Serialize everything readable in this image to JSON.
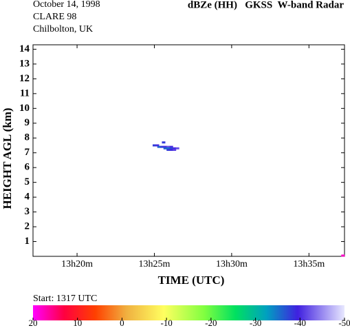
{
  "chart_data": {
    "type": "radar-image",
    "date": "October 14, 1998",
    "campaign": "CLARE 98",
    "site": "Chilbolton, UK",
    "title": "dBZe (HH)   GKSS  W-band Radar",
    "x_label": "TIME (UTC)",
    "y_label": "HEIGHT AGL (km)",
    "start": "Start: 1317 UTC",
    "xlim": [
      17.15,
      37.3
    ],
    "xticks": [
      {
        "value": 20,
        "label": "13h20m"
      },
      {
        "value": 25,
        "label": "13h25m"
      },
      {
        "value": 30,
        "label": "13h30m"
      },
      {
        "value": 35,
        "label": "13h35m"
      }
    ],
    "ylim": [
      0,
      14.3
    ],
    "yticks": [
      1,
      2,
      3,
      4,
      5,
      6,
      7,
      8,
      9,
      10,
      11,
      12,
      13,
      14
    ],
    "colorbar": {
      "lim": [
        20,
        -50
      ],
      "ticks": [
        20,
        10,
        0,
        -10,
        -20,
        -30,
        -40,
        -50
      ]
    },
    "cells": [
      {
        "x": 25.0,
        "y": 7.5,
        "dbz": -38
      },
      {
        "x": 25.2,
        "y": 7.5,
        "dbz": -40
      },
      {
        "x": 25.3,
        "y": 7.4,
        "dbz": -36
      },
      {
        "x": 25.5,
        "y": 7.4,
        "dbz": -38
      },
      {
        "x": 25.7,
        "y": 7.4,
        "dbz": -40
      },
      {
        "x": 25.9,
        "y": 7.4,
        "dbz": -42
      },
      {
        "x": 26.1,
        "y": 7.4,
        "dbz": -40
      },
      {
        "x": 25.7,
        "y": 7.3,
        "dbz": -36
      },
      {
        "x": 25.9,
        "y": 7.3,
        "dbz": -35
      },
      {
        "x": 26.1,
        "y": 7.3,
        "dbz": -37
      },
      {
        "x": 26.3,
        "y": 7.3,
        "dbz": -40
      },
      {
        "x": 26.5,
        "y": 7.3,
        "dbz": -42
      },
      {
        "x": 25.9,
        "y": 7.2,
        "dbz": -38
      },
      {
        "x": 26.1,
        "y": 7.2,
        "dbz": -39
      },
      {
        "x": 26.3,
        "y": 7.2,
        "dbz": -41
      },
      {
        "x": 25.6,
        "y": 7.7,
        "dbz": -38
      },
      {
        "x": 37.2,
        "y": 0.05,
        "dbz": 18
      }
    ]
  }
}
